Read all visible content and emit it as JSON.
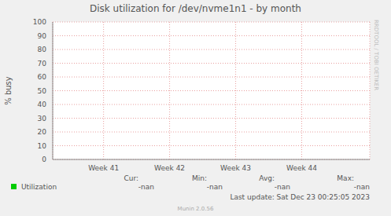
{
  "chart_data": {
    "type": "line",
    "title": "Disk utilization for /dev/nvme1n1 - by month",
    "y_label": "% busy",
    "x": [
      41,
      42,
      43,
      44
    ],
    "xlim": [
      40.23,
      45.03
    ],
    "xticks": [
      {
        "value": 41,
        "label": "Week 41"
      },
      {
        "value": 42,
        "label": "Week 42"
      },
      {
        "value": 43,
        "label": "Week 43"
      },
      {
        "value": 44,
        "label": "Week 44"
      }
    ],
    "ylim": [
      0,
      100
    ],
    "yticks": [
      0,
      10,
      20,
      30,
      40,
      50,
      60,
      70,
      80,
      90,
      100
    ],
    "grid": true,
    "series": [
      {
        "name": "Utilization",
        "color": "#00cc00",
        "values": [
          null,
          null,
          null,
          null
        ]
      }
    ],
    "stats": [
      {
        "label": "Cur:",
        "value": "-nan"
      },
      {
        "label": "Min:",
        "value": "-nan"
      },
      {
        "label": "Avg:",
        "value": "-nan"
      },
      {
        "label": "Max:",
        "value": "-nan"
      }
    ],
    "last_update": "Last update: Sat Dec 23 00:25:05 2023",
    "footer": "Munin 2.0.56",
    "watermark": "RRDTOOL / TOBI OETIKER"
  }
}
